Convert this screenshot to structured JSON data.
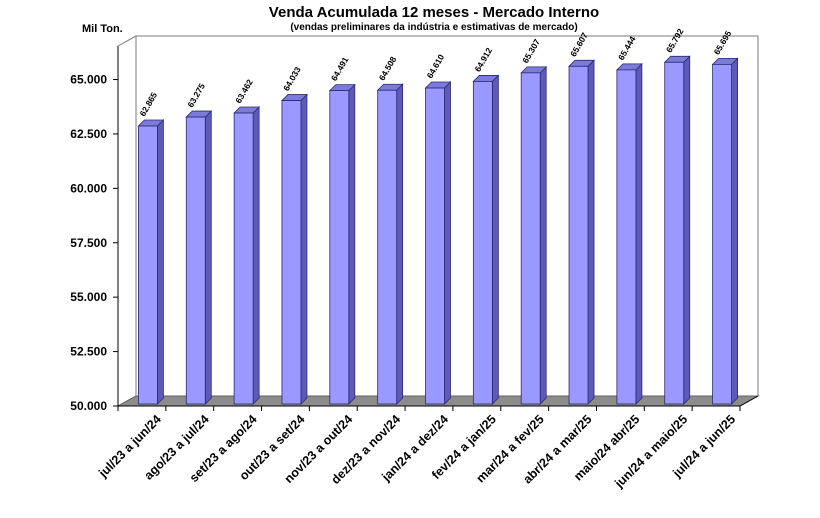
{
  "chart_data": {
    "type": "bar",
    "title": "Venda Acumulada 12 meses -  Mercado Interno",
    "subtitle": "(vendas preliminares da indústria e estimativas de mercado)",
    "ylabel": "Mil Ton.",
    "xlabel": "",
    "ylim": [
      50000,
      67000
    ],
    "yticks": [
      50000,
      52500,
      55000,
      57500,
      60000,
      62500,
      65000
    ],
    "ytick_labels": [
      "50.000",
      "52.500",
      "55.000",
      "57.500",
      "60.000",
      "62.500",
      "65.000"
    ],
    "categories": [
      "jul/23 a jun/24",
      "ago/23 a jul/24",
      "set/23 a ago/24",
      "out/23 a set/24",
      "nov/23 a out/24",
      "dez/23 a nov/24",
      "jan/24 a dez/24",
      "fev/24 a jan/25",
      "mar/24 a fev/25",
      "abr/24 a mar/25",
      "maio/24 abr/25",
      "jun/24 a maio/25",
      "jul/24 a jun/25"
    ],
    "values": [
      62865,
      63275,
      63462,
      64033,
      64491,
      64508,
      64610,
      64912,
      65307,
      65607,
      65444,
      65792,
      65695
    ],
    "value_labels": [
      "62.865",
      "63.275",
      "63.462",
      "64.033",
      "64.491",
      "64.508",
      "64.610",
      "64.912",
      "65.307",
      "65.607",
      "65.444",
      "65.792",
      "65.695"
    ],
    "grid": false,
    "legend": "none",
    "colors": {
      "bar_front": "#9999ff",
      "bar_side": "#5c5cb8",
      "bar_top": "#7b7bdb",
      "floor": "#8c8c8c",
      "wall_border": "#7a7a7a"
    }
  }
}
